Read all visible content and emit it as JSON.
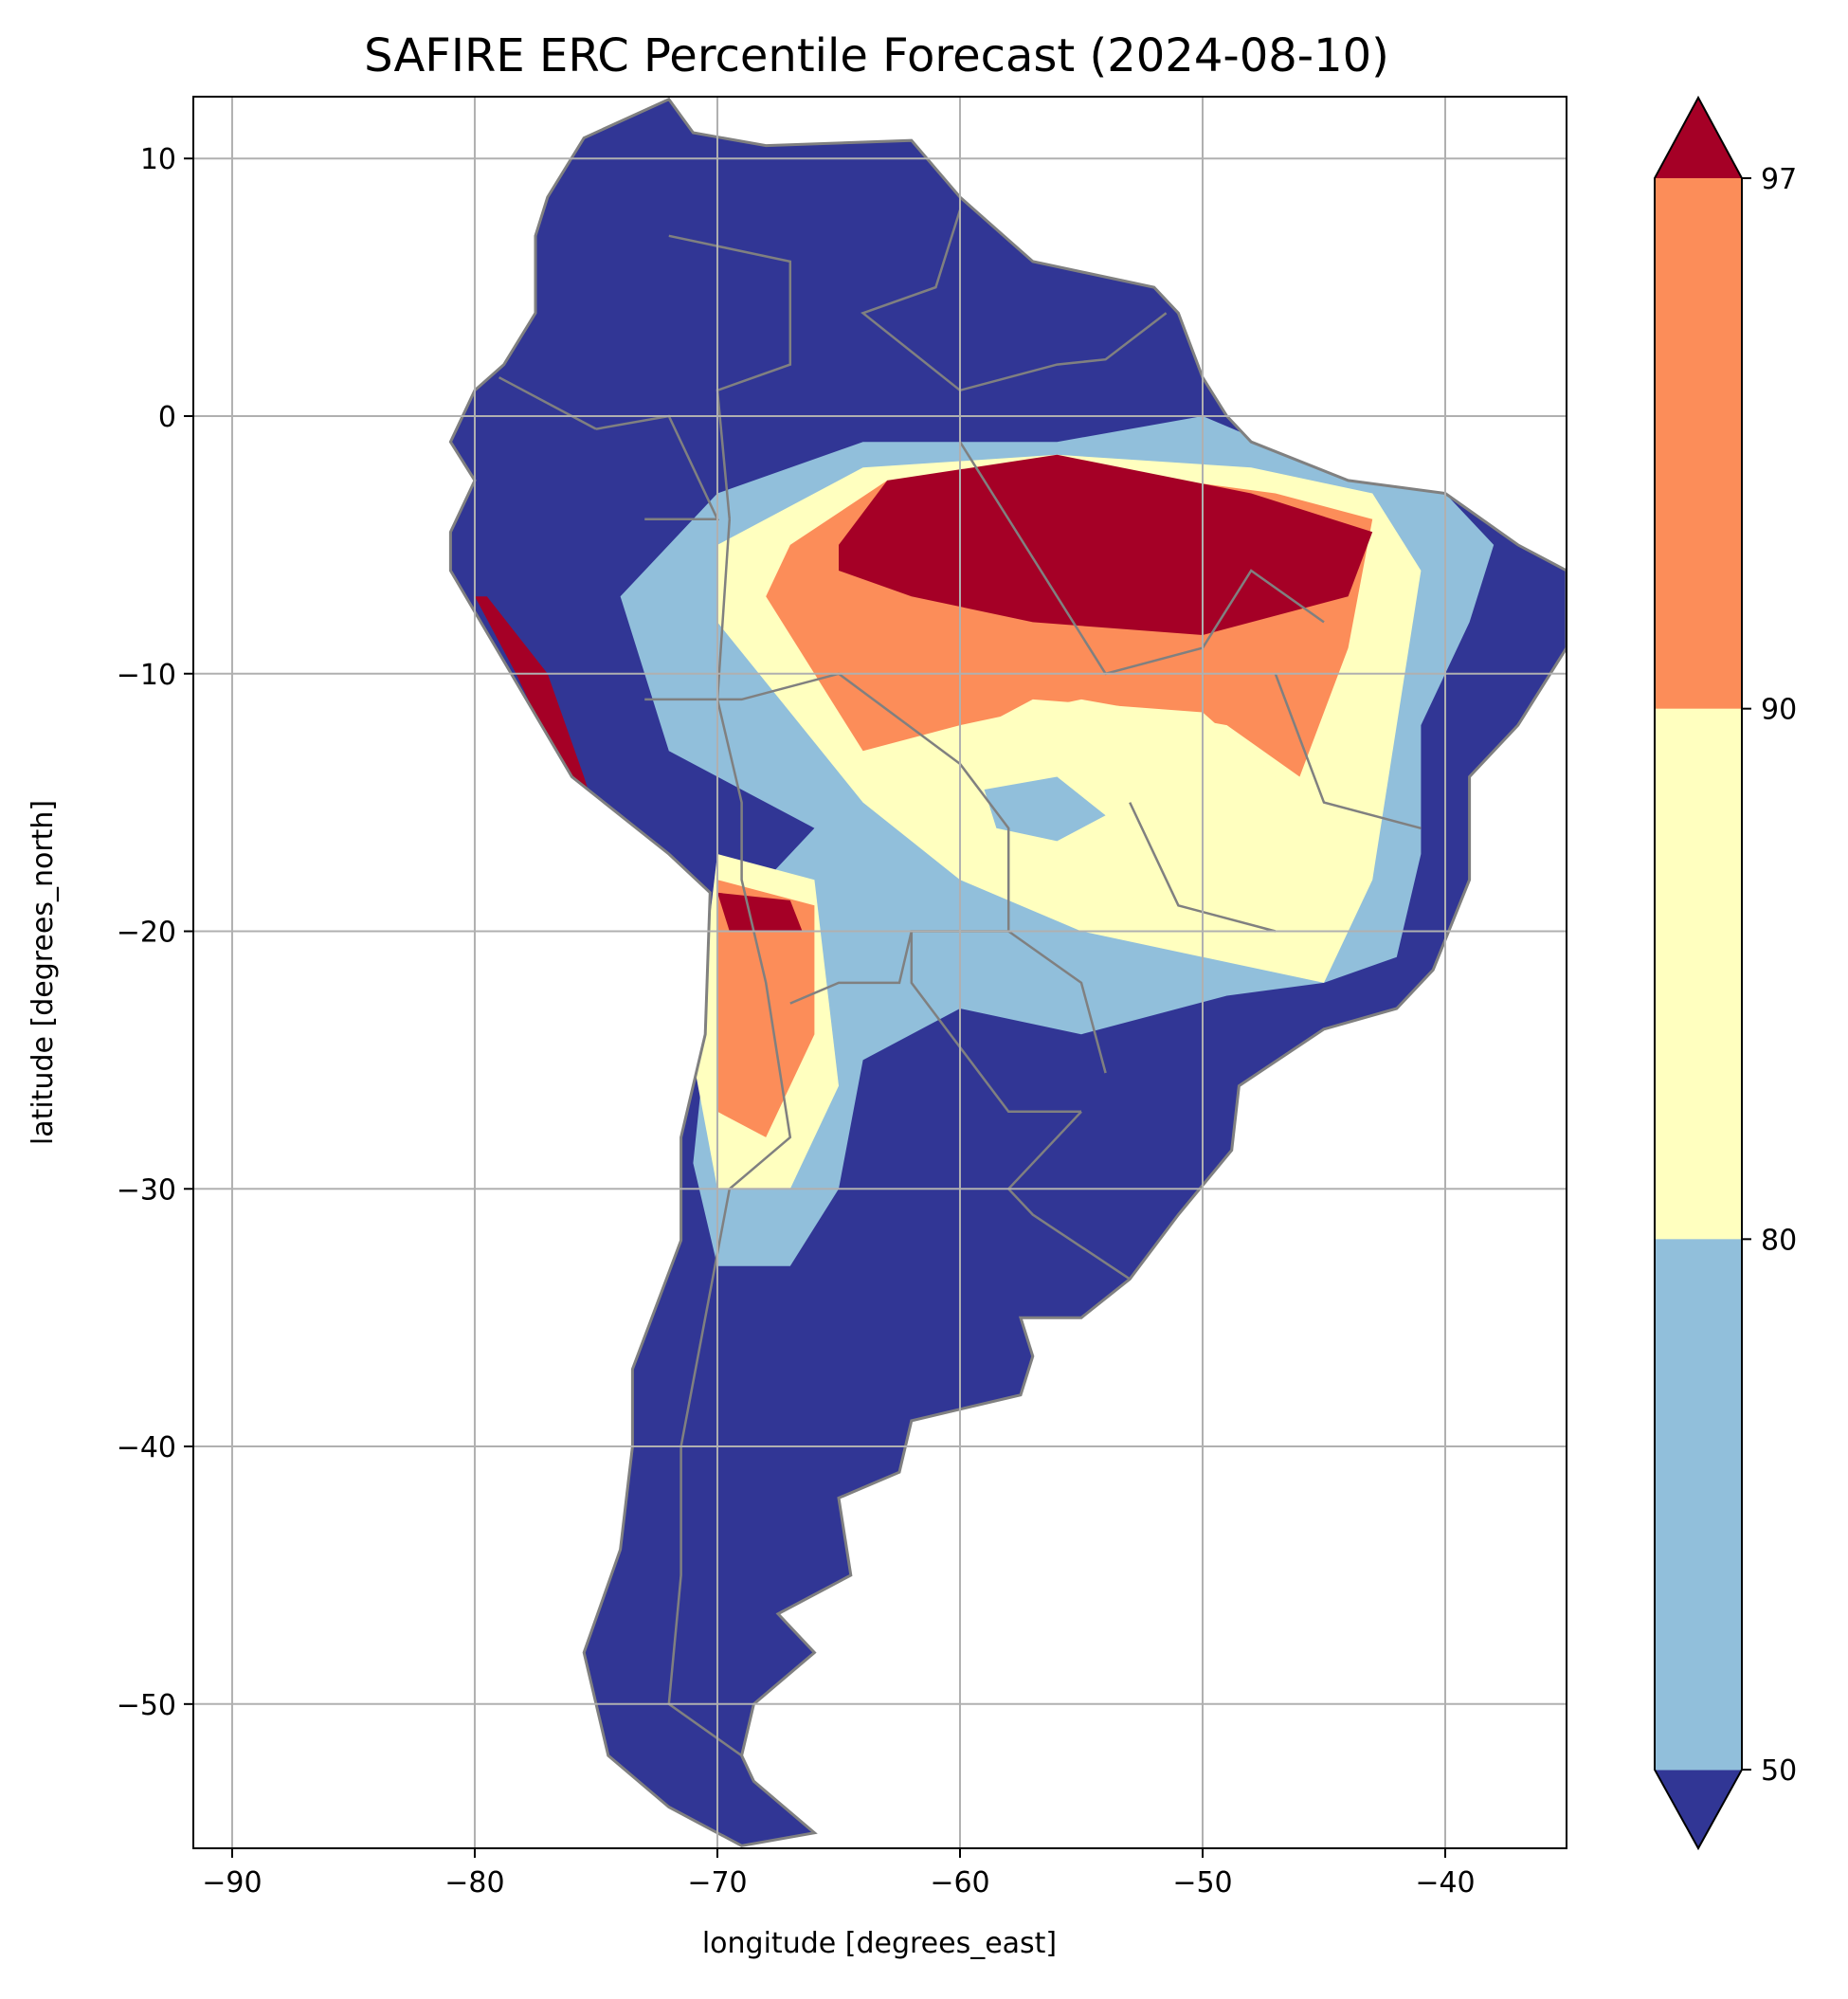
{
  "chart_data": {
    "type": "heatmap",
    "title": "SAFIRE ERC Percentile Forecast (2024-08-10)",
    "xlabel": "longitude [degrees_east]",
    "ylabel": "latitude [degrees_north]",
    "xlim": [
      -91.6,
      -35.0
    ],
    "ylim": [
      -55.6,
      12.4
    ],
    "xticks": [
      -90,
      -80,
      -70,
      -60,
      -50,
      -40
    ],
    "xtick_labels": [
      "−90",
      "−80",
      "−70",
      "−60",
      "−50",
      "−40"
    ],
    "yticks": [
      10,
      0,
      -10,
      -20,
      -30,
      -40,
      -50
    ],
    "ytick_labels": [
      "10",
      "0",
      "−10",
      "−20",
      "−30",
      "−40",
      "−50"
    ],
    "grid": true,
    "colorbar": {
      "ticks": [
        50,
        80,
        90,
        97
      ],
      "tick_labels": [
        "50",
        "80",
        "90",
        "97"
      ],
      "extend": "both",
      "colors": [
        "#313695",
        "#91bfdb",
        "#ffffbf",
        "#fc8d59",
        "#a50026"
      ]
    },
    "border_color": "#808080"
  }
}
